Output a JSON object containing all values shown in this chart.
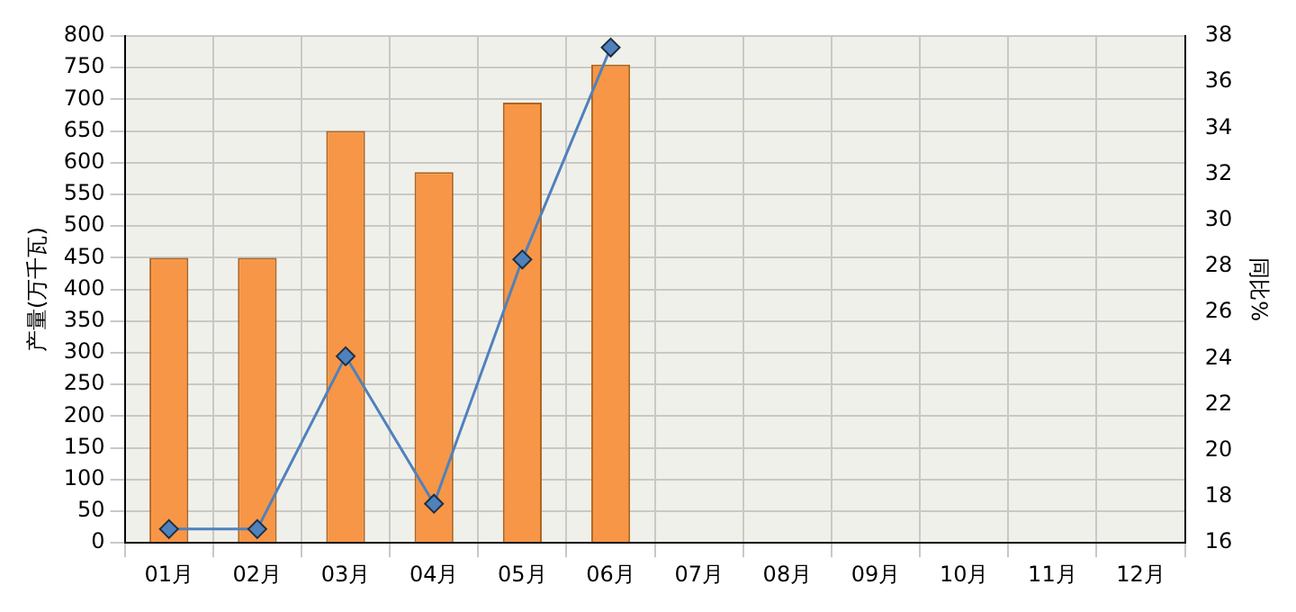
{
  "chart_data": {
    "type": "bar",
    "ylabel": "产量(万千瓦)",
    "y2label": "同比%",
    "categories": [
      "01月",
      "02月",
      "03月",
      "04月",
      "05月",
      "06月",
      "07月",
      "08月",
      "09月",
      "10月",
      "11月",
      "12月"
    ],
    "series": [
      {
        "color": "#f79646",
        "values": [
          450,
          450,
          650,
          585,
          695,
          755,
          null,
          null,
          null,
          null,
          null,
          null
        ]
      },
      {
        "type": "line",
        "axis": "y2",
        "color": "#4f81bd",
        "marker": "diamond",
        "values": [
          16.6,
          16.6,
          24.1,
          17.7,
          28.3,
          37.5,
          null,
          null,
          null,
          null,
          null,
          null
        ]
      }
    ],
    "ylim": [
      0,
      800
    ],
    "yticks": [
      0,
      50,
      100,
      150,
      200,
      250,
      300,
      350,
      400,
      450,
      500,
      550,
      600,
      650,
      700,
      750,
      800
    ],
    "y2lim": [
      16,
      38
    ],
    "y2ticks": [
      16,
      18,
      20,
      22,
      24,
      26,
      28,
      30,
      32,
      34,
      36,
      38
    ],
    "grid": true,
    "legend": false
  }
}
